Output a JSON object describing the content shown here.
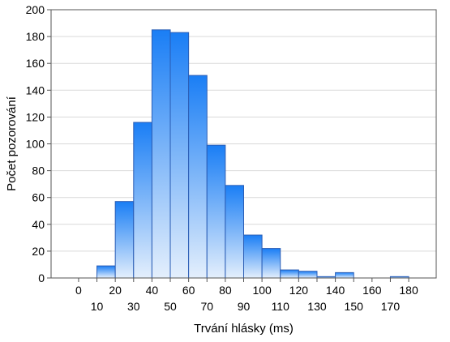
{
  "chart_data": {
    "type": "bar",
    "title": "",
    "xlabel": "Trvání hlásky (ms)",
    "ylabel": "Počet pozorování",
    "bin_width": 10,
    "bins": [
      {
        "from": 10,
        "to": 20,
        "value": 9
      },
      {
        "from": 20,
        "to": 30,
        "value": 57
      },
      {
        "from": 30,
        "to": 40,
        "value": 116
      },
      {
        "from": 40,
        "to": 50,
        "value": 185
      },
      {
        "from": 50,
        "to": 60,
        "value": 183
      },
      {
        "from": 60,
        "to": 70,
        "value": 151
      },
      {
        "from": 70,
        "to": 80,
        "value": 99
      },
      {
        "from": 80,
        "to": 90,
        "value": 69
      },
      {
        "from": 90,
        "to": 100,
        "value": 32
      },
      {
        "from": 100,
        "to": 110,
        "value": 22
      },
      {
        "from": 110,
        "to": 120,
        "value": 6
      },
      {
        "from": 120,
        "to": 130,
        "value": 5
      },
      {
        "from": 130,
        "to": 140,
        "value": 1
      },
      {
        "from": 140,
        "to": 150,
        "value": 4
      },
      {
        "from": 170,
        "to": 180,
        "value": 1
      }
    ],
    "xlim": [
      -15,
      195
    ],
    "ylim": [
      0,
      200
    ],
    "y_ticks": [
      0,
      20,
      40,
      60,
      80,
      100,
      120,
      140,
      160,
      180,
      200
    ],
    "x_ticks_row1": [
      0,
      20,
      40,
      60,
      80,
      100,
      120,
      140,
      160,
      180
    ],
    "x_ticks_row2": [
      10,
      30,
      50,
      70,
      90,
      110,
      130,
      150,
      170
    ],
    "grid": "horizontal",
    "legend": "none",
    "colors": {
      "bar_top": "#1a7ef5",
      "bar_bottom": "#e4effc",
      "bar_stroke": "#2a5db5",
      "grid": "#d9d9d9",
      "frame": "#555555"
    }
  }
}
